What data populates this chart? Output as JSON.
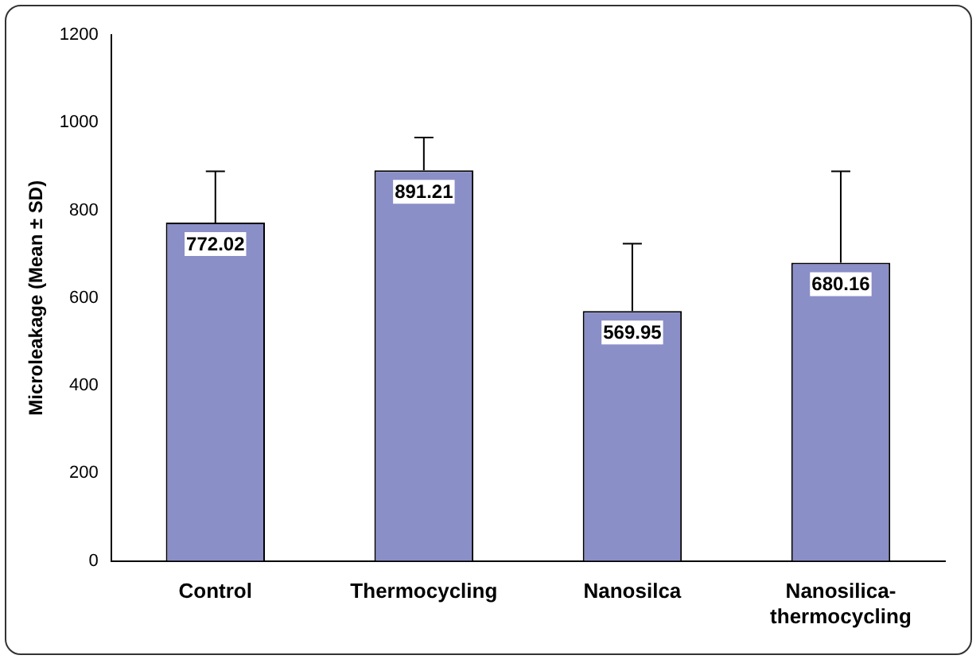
{
  "chart_data": {
    "type": "bar",
    "ylabel": "Microleakage (Mean ± SD)",
    "categories": [
      "Control",
      "Thermocycling",
      "Nanosilca",
      "Nanosilica-thermocycling"
    ],
    "values": [
      772.02,
      891.21,
      569.95,
      680.16
    ],
    "errors": [
      [
        772.02,
        889
      ],
      [
        891.21,
        966
      ],
      [
        569.95,
        724
      ],
      [
        680.16,
        889
      ]
    ],
    "color": "#8a8fc8",
    "ylim": [
      0,
      1200
    ],
    "yticks": [
      0,
      200,
      400,
      600,
      800,
      1000,
      1200
    ],
    "grid": false,
    "legend": false,
    "data_labels": true
  }
}
